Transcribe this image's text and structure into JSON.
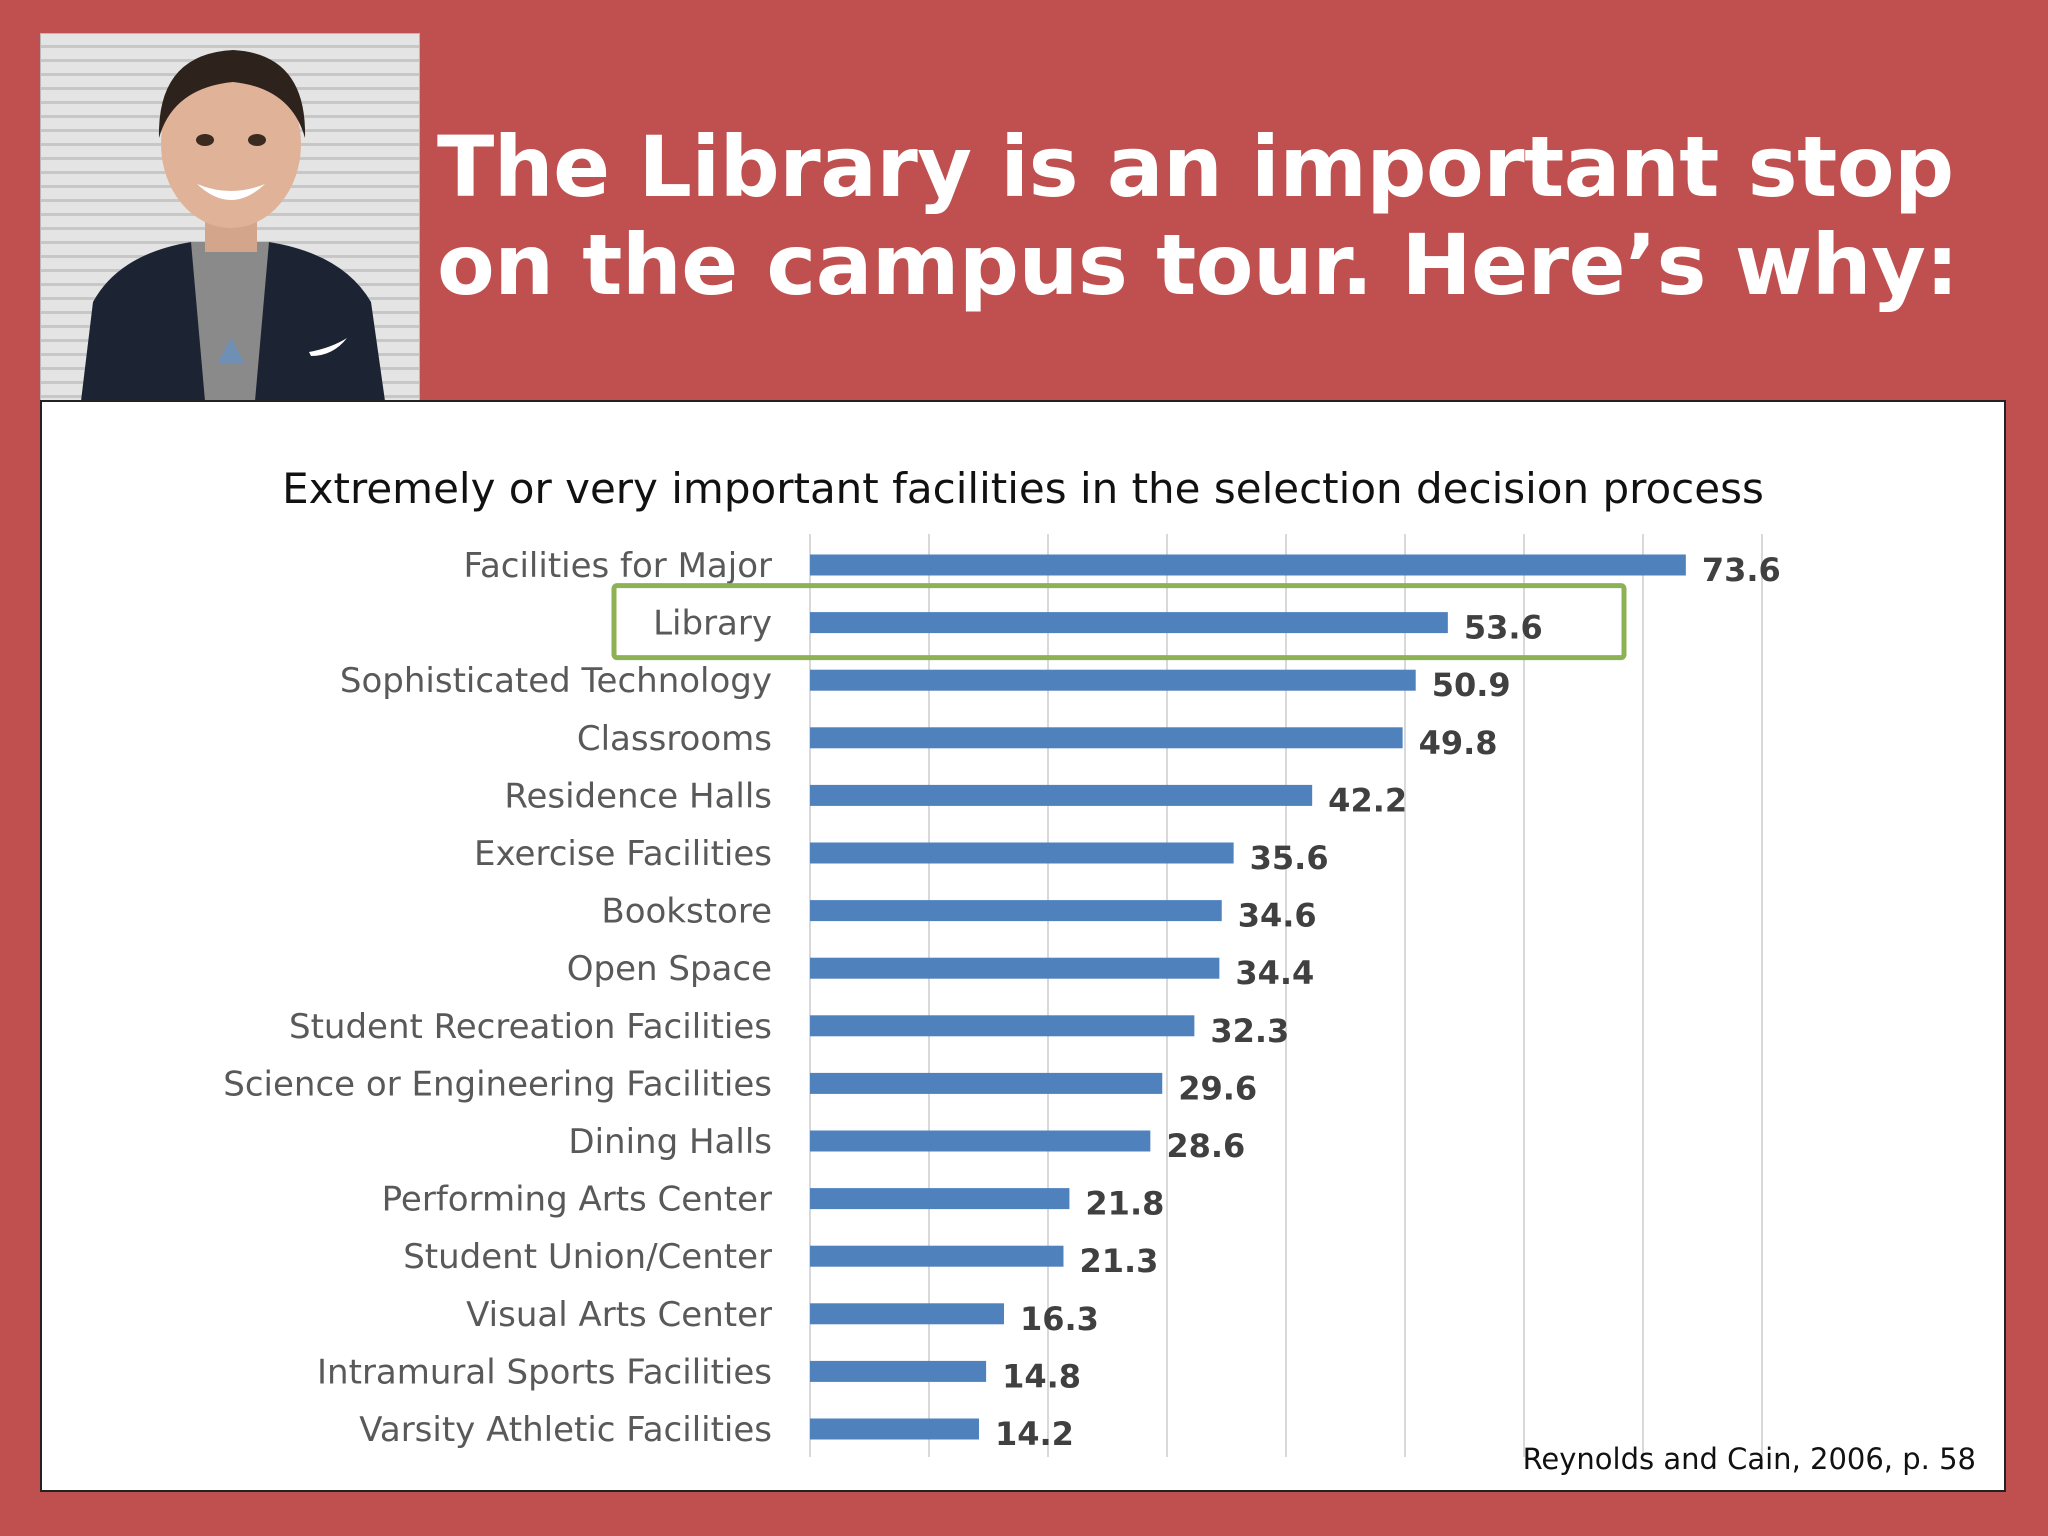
{
  "slide": {
    "title": "The Library is an important stop on the campus tour. Here’s why:",
    "citation": "Reynolds and Cain, 2006, p. 58"
  },
  "photo": {
    "description_icon": "student-portrait"
  },
  "colors": {
    "background": "#bf504f",
    "bar": "#4f81bd",
    "highlight_box": "#8db254",
    "label_text": "#595959",
    "value_text": "#404040",
    "gridline": "#d9d9d9"
  },
  "chart_data": {
    "type": "bar",
    "orientation": "horizontal",
    "title": "Extremely or very important facilities in the selection decision process",
    "categories": [
      "Facilities for Major",
      "Library",
      "Sophisticated Technology",
      "Classrooms",
      "Residence Halls",
      "Exercise Facilities",
      "Bookstore",
      "Open Space",
      "Student Recreation Facilities",
      "Science or Engineering Facilities",
      "Dining Halls",
      "Performing Arts Center",
      "Student Union/Center",
      "Visual Arts Center",
      "Intramural Sports Facilities",
      "Varsity Athletic Facilities"
    ],
    "values": [
      73.6,
      53.6,
      50.9,
      49.8,
      42.2,
      35.6,
      34.6,
      34.4,
      32.3,
      29.6,
      28.6,
      21.8,
      21.3,
      16.3,
      14.8,
      14.2
    ],
    "value_labels": [
      "73.6",
      "53.6",
      "50.9",
      "49.8",
      "42.2",
      "35.6",
      "34.6",
      "34.4",
      "32.3",
      "29.6",
      "28.6",
      "21.8",
      "21.3",
      "16.3",
      "14.8",
      "14.2"
    ],
    "xlim": [
      0,
      80
    ],
    "grid": true,
    "gridline_step": 10,
    "highlighted_category": "Library"
  }
}
